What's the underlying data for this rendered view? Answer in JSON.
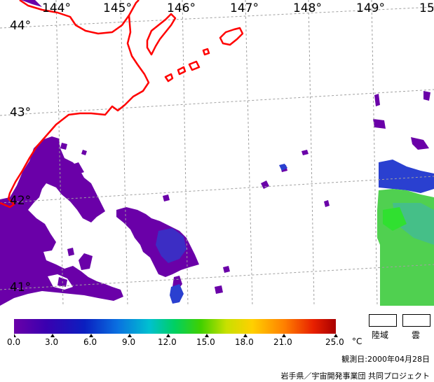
{
  "map": {
    "lon_labels": [
      "144°",
      "145°",
      "146°",
      "147°",
      "148°",
      "149°",
      "15"
    ],
    "lat_labels": [
      "44°",
      "43°",
      "42°",
      "41°"
    ]
  },
  "colorbar": {
    "ticks": [
      "0.0",
      "3.0",
      "6.0",
      "9.0",
      "12.0",
      "15.0",
      "18.0",
      "21.0",
      "25.0"
    ],
    "unit": "°C",
    "colors": [
      "#6a00a8",
      "#3a00b0",
      "#0a1fc0",
      "#0a6fe0",
      "#00c0d0",
      "#00d060",
      "#40d000",
      "#c8e000",
      "#ffd000",
      "#ff8000",
      "#e82000",
      "#a80000"
    ]
  },
  "legend": {
    "land_label": "陸域",
    "cloud_label": "雲"
  },
  "observation_date": "観測日:2000年04月28日",
  "credit": "岩手県／宇宙開発事業団 共同プロジェクト",
  "colors": {
    "coastline": "#ff0000",
    "sst_cold": "#6a00a8",
    "sst_mid": "#2a40d0",
    "sst_warm": "#30e030",
    "grid": "#a0a0a0"
  }
}
